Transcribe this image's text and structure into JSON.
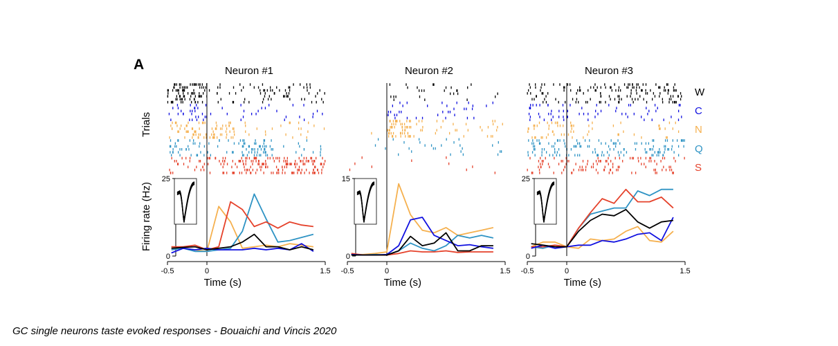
{
  "panel_label": "A",
  "caption": "GC single neurons taste evoked responses - Bouaichi and Vincis 2020",
  "shared": {
    "raster_ylabel": "Trials",
    "psth_ylabel": "Firing rate (Hz)",
    "xlabel": "Time (s)",
    "xticks": [
      "-0.5",
      "0",
      "1.5"
    ]
  },
  "tastes": [
    {
      "label": "W",
      "color": "#000000"
    },
    {
      "label": "C",
      "color": "#1010e0"
    },
    {
      "label": "N",
      "color": "#f5b04e"
    },
    {
      "label": "Q",
      "color": "#2e93c4"
    },
    {
      "label": "S",
      "color": "#e5412a"
    }
  ],
  "chart_data": [
    {
      "type": "line",
      "title": "Neuron #1",
      "xlabel": "Time (s)",
      "ylabel": "Firing rate (Hz)",
      "xlim": [
        -0.5,
        1.5
      ],
      "ylim": [
        0,
        25
      ],
      "yticks": [
        "0",
        "25"
      ],
      "x": [
        -0.45,
        -0.3,
        -0.15,
        0.0,
        0.15,
        0.3,
        0.45,
        0.6,
        0.75,
        0.9,
        1.05,
        1.2,
        1.35
      ],
      "series": [
        {
          "name": "W",
          "values": [
            2.5,
            2.8,
            3.0,
            2.0,
            2.5,
            3.0,
            4.5,
            7.0,
            3.0,
            3.0,
            2.0,
            3.0,
            2.0
          ]
        },
        {
          "name": "C",
          "values": [
            1.0,
            2.5,
            2.0,
            2.5,
            2.0,
            2.0,
            2.0,
            2.5,
            2.0,
            2.5,
            2.0,
            4.0,
            1.5
          ]
        },
        {
          "name": "N",
          "values": [
            3.0,
            2.5,
            2.0,
            1.5,
            16.0,
            11.0,
            2.5,
            3.0,
            3.5,
            3.0,
            4.0,
            3.5,
            3.0
          ]
        },
        {
          "name": "Q",
          "values": [
            2.0,
            2.5,
            1.5,
            1.5,
            2.0,
            2.5,
            8.0,
            20.0,
            12.0,
            4.5,
            5.0,
            6.0,
            7.0
          ]
        },
        {
          "name": "S",
          "values": [
            3.0,
            3.0,
            3.5,
            2.0,
            3.0,
            17.5,
            15.0,
            9.5,
            11.0,
            9.0,
            11.0,
            10.0,
            9.5
          ]
        }
      ],
      "trial_counts": [
        7,
        6,
        6,
        6,
        6
      ],
      "raster_rates": [
        {
          "pre": 26,
          "post": 28
        },
        {
          "pre": 10,
          "post": 12
        },
        {
          "pre": 14,
          "post": 16,
          "burst": [
            0.05,
            0.35
          ]
        },
        {
          "pre": 10,
          "post": 18,
          "burst": [
            0.45,
            0.85
          ]
        },
        {
          "pre": 8,
          "post": 40,
          "burst": [
            0.2,
            1.5
          ]
        }
      ]
    },
    {
      "type": "line",
      "title": "Neuron #2",
      "xlabel": "Time (s)",
      "ylabel": "Firing rate (Hz)",
      "xlim": [
        -0.5,
        1.5
      ],
      "ylim": [
        0,
        15
      ],
      "yticks": [
        "0",
        "15"
      ],
      "x": [
        -0.45,
        -0.3,
        -0.15,
        0.0,
        0.15,
        0.3,
        0.45,
        0.6,
        0.75,
        0.9,
        1.05,
        1.2,
        1.35
      ],
      "series": [
        {
          "name": "W",
          "values": [
            0.2,
            0.2,
            0.2,
            0.2,
            1.0,
            3.8,
            2.0,
            2.5,
            4.5,
            1.0,
            1.0,
            2.0,
            2.0
          ]
        },
        {
          "name": "C",
          "values": [
            0.3,
            0.2,
            0.2,
            0.3,
            2.0,
            7.0,
            7.5,
            4.0,
            3.0,
            2.0,
            2.2,
            1.8,
            1.5
          ]
        },
        {
          "name": "N",
          "values": [
            0.3,
            0.3,
            0.5,
            0.8,
            14.0,
            8.0,
            5.0,
            4.5,
            5.5,
            4.0,
            4.5,
            5.0,
            5.5
          ]
        },
        {
          "name": "Q",
          "values": [
            0.2,
            0.2,
            0.3,
            0.2,
            1.0,
            2.5,
            1.5,
            1.0,
            2.0,
            4.0,
            3.5,
            4.0,
            3.5
          ]
        },
        {
          "name": "S",
          "values": [
            0.5,
            0.2,
            0.2,
            0.2,
            0.5,
            1.0,
            0.8,
            0.8,
            1.0,
            0.7,
            0.8,
            0.8,
            0.8
          ]
        }
      ],
      "trial_counts": [
        6,
        6,
        6,
        6,
        6
      ],
      "raster_rates": [
        {
          "pre": 0,
          "post": 14
        },
        {
          "pre": 0,
          "post": 14
        },
        {
          "pre": 1,
          "post": 20,
          "burst": [
            0.0,
            0.3
          ]
        },
        {
          "pre": 1,
          "post": 9
        },
        {
          "pre": 1,
          "post": 3
        }
      ]
    },
    {
      "type": "line",
      "title": "Neuron #3",
      "xlabel": "Time (s)",
      "ylabel": "Firing rate (Hz)",
      "xlim": [
        -0.5,
        1.5
      ],
      "ylim": [
        0,
        25
      ],
      "yticks": [
        "0",
        "25"
      ],
      "x": [
        -0.45,
        -0.3,
        -0.15,
        0.0,
        0.15,
        0.3,
        0.45,
        0.6,
        0.75,
        0.9,
        1.05,
        1.2,
        1.35
      ],
      "series": [
        {
          "name": "W",
          "values": [
            4.0,
            3.5,
            3.0,
            3.0,
            8.0,
            11.5,
            13.5,
            13.0,
            15.0,
            11.0,
            9.0,
            11.0,
            11.5
          ]
        },
        {
          "name": "C",
          "values": [
            2.5,
            3.5,
            2.5,
            3.0,
            3.5,
            3.5,
            5.0,
            4.5,
            5.5,
            7.0,
            7.5,
            5.0,
            12.5
          ]
        },
        {
          "name": "N",
          "values": [
            3.0,
            4.5,
            4.5,
            3.0,
            2.5,
            5.5,
            5.0,
            5.5,
            8.0,
            9.5,
            5.0,
            4.5,
            8.0
          ]
        },
        {
          "name": "Q",
          "values": [
            3.0,
            2.5,
            3.5,
            3.0,
            9.0,
            13.5,
            14.5,
            15.5,
            15.5,
            21.0,
            19.5,
            21.5,
            21.5
          ]
        },
        {
          "name": "S",
          "values": [
            3.0,
            3.0,
            3.5,
            3.0,
            9.0,
            14.0,
            18.5,
            17.0,
            21.5,
            17.5,
            17.5,
            19.0,
            15.5
          ]
        }
      ],
      "trial_counts": [
        7,
        6,
        6,
        6,
        6
      ],
      "raster_rates": [
        {
          "pre": 10,
          "post": 50
        },
        {
          "pre": 10,
          "post": 16
        },
        {
          "pre": 12,
          "post": 14
        },
        {
          "pre": 12,
          "post": 40
        },
        {
          "pre": 10,
          "post": 38
        }
      ]
    }
  ]
}
